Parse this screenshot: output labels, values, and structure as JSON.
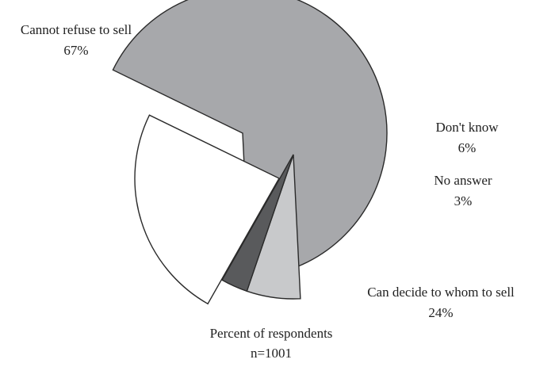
{
  "chart_data": {
    "type": "pie",
    "title": "",
    "slices": [
      {
        "label": "Cannot refuse to sell",
        "value": 67,
        "value_label": "67%",
        "color": "#a7a8ab"
      },
      {
        "label": "Don't know",
        "value": 6,
        "value_label": "6%",
        "color": "#c8c9cb"
      },
      {
        "label": "No answer",
        "value": 3,
        "value_label": "3%",
        "color": "#595a5c"
      },
      {
        "label": "Can decide to whom to sell",
        "value": 24,
        "value_label": "24%",
        "color": "#ffffff"
      }
    ],
    "exploded": true,
    "edge_color": "#2a2a2a",
    "footer": {
      "line1": "Percent of respondents",
      "line2": "n=1001"
    }
  }
}
